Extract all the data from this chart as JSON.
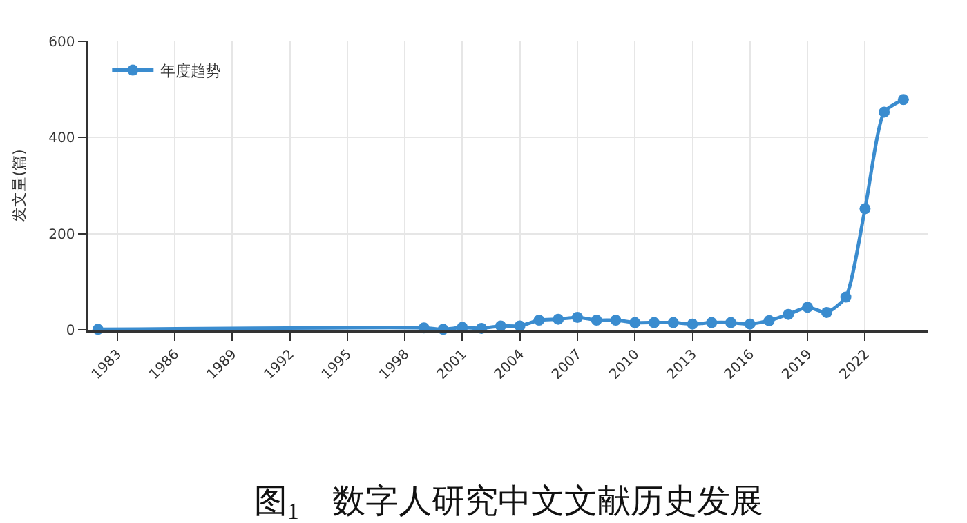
{
  "chart_data": {
    "type": "line",
    "ylabel": "发文量(篇)",
    "x": [
      1982,
      1999,
      2000,
      2001,
      2002,
      2003,
      2004,
      2005,
      2006,
      2007,
      2008,
      2009,
      2010,
      2011,
      2012,
      2013,
      2014,
      2015,
      2016,
      2017,
      2018,
      2019,
      2020,
      2021,
      2022,
      2023,
      2024
    ],
    "series": [
      {
        "name": "年度趋势",
        "color": "#3a8ccf",
        "values": [
          1,
          4,
          1,
          5,
          3,
          8,
          8,
          20,
          22,
          26,
          20,
          20,
          15,
          15,
          15,
          12,
          15,
          15,
          12,
          19,
          32,
          47,
          36,
          68,
          252,
          453,
          479
        ]
      }
    ],
    "xlim": [
      1981.5,
      2025.3
    ],
    "xticks": [
      1983,
      1986,
      1989,
      1992,
      1995,
      1998,
      2001,
      2004,
      2007,
      2010,
      2013,
      2016,
      2019,
      2022
    ],
    "ylim": [
      0,
      600
    ],
    "yticks": [
      0,
      200,
      400,
      600
    ],
    "grid": true,
    "legend": "top left",
    "marker": "circle",
    "line_style": "solid",
    "annotations": [
      "图$_{1}$　数字人研究中文文献历史发展"
    ]
  }
}
